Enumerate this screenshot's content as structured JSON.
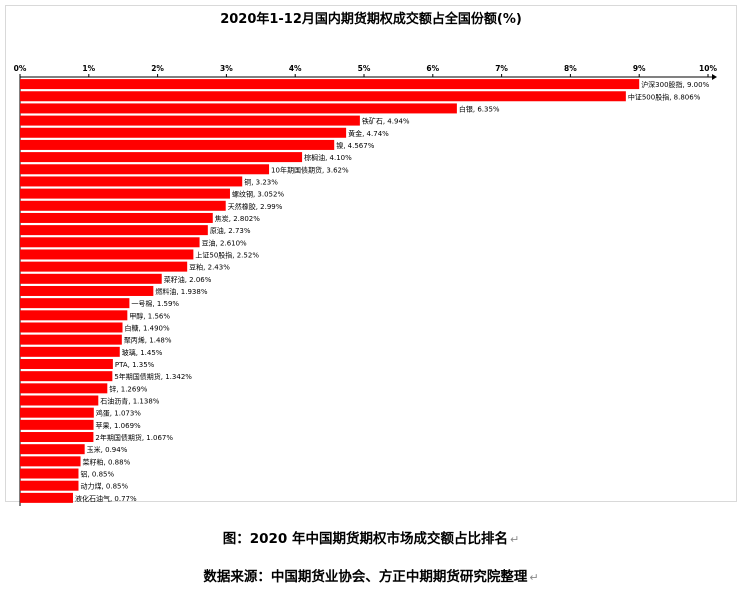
{
  "chart_data": {
    "type": "bar",
    "orientation": "horizontal",
    "title": "2020年1-12月国内期货期权成交额占全国份额(%)",
    "xlabel": "",
    "ylabel": "",
    "xlim": [
      0,
      10
    ],
    "xticks": [
      "0%",
      "1%",
      "2%",
      "3%",
      "4%",
      "5%",
      "6%",
      "7%",
      "8%",
      "9%",
      "10%"
    ],
    "axis_position": "top",
    "grid": false,
    "bar_color": "#ff0000",
    "categories": [
      "沪深300股指",
      "中证500股指",
      "白银",
      "铁矿石",
      "黄金",
      "镍",
      "棕榈油",
      "10年期国债期货",
      "铜",
      "螺纹钢",
      "天然橡胶",
      "焦炭",
      "原油",
      "豆油",
      "上证50股指",
      "豆粕",
      "菜籽油",
      "燃料油",
      "一号棉",
      "甲醇",
      "白糖",
      "聚丙烯",
      "玻璃",
      "PTA",
      "5年期国债期货",
      "锌",
      "石油沥青",
      "鸡蛋",
      "苹果",
      "2年期国债期货",
      "玉米",
      "菜籽粕",
      "铝",
      "动力煤",
      "液化石油气"
    ],
    "values": [
      9.0,
      8.806,
      6.35,
      4.94,
      4.74,
      4.567,
      4.1,
      3.62,
      3.23,
      3.052,
      2.99,
      2.802,
      2.73,
      2.61,
      2.52,
      2.43,
      2.06,
      1.938,
      1.59,
      1.56,
      1.49,
      1.48,
      1.45,
      1.35,
      1.342,
      1.269,
      1.138,
      1.073,
      1.069,
      1.067,
      0.94,
      0.88,
      0.85,
      0.85,
      0.77
    ],
    "data_labels": [
      "沪深300股指, 9.00%",
      "中证500股指, 8.806%",
      "白银, 6.35%",
      "铁矿石, 4.94%",
      "黄金, 4.74%",
      "镍, 4.567%",
      "棕榈油, 4.10%",
      "10年期国债期货, 3.62%",
      "铜, 3.23%",
      "螺纹钢, 3.052%",
      "天然橡胶, 2.99%",
      "焦炭, 2.802%",
      "原油, 2.73%",
      "豆油, 2.610%",
      "上证50股指, 2.52%",
      "豆粕, 2.43%",
      "菜籽油, 2.06%",
      "燃料油, 1.938%",
      "一号棉, 1.59%",
      "甲醇, 1.56%",
      "白糖, 1.490%",
      "聚丙烯, 1.48%",
      "玻璃, 1.45%",
      "PTA, 1.35%",
      "5年期国债期货, 1.342%",
      "锌, 1.269%",
      "石油沥青, 1.138%",
      "鸡蛋, 1.073%",
      "苹果, 1.069%",
      "2年期国债期货, 1.067%",
      "玉米, 0.94%",
      "菜籽粕, 0.88%",
      "铝, 0.85%",
      "动力煤, 0.85%",
      "液化石油气, 0.77%"
    ]
  },
  "captions": {
    "figure": "图：2020 年中国期货期权市场成交额占比排名",
    "source": "数据来源：中国期货业协会、方正中期期货研究院整理",
    "para_mark": "↵"
  }
}
